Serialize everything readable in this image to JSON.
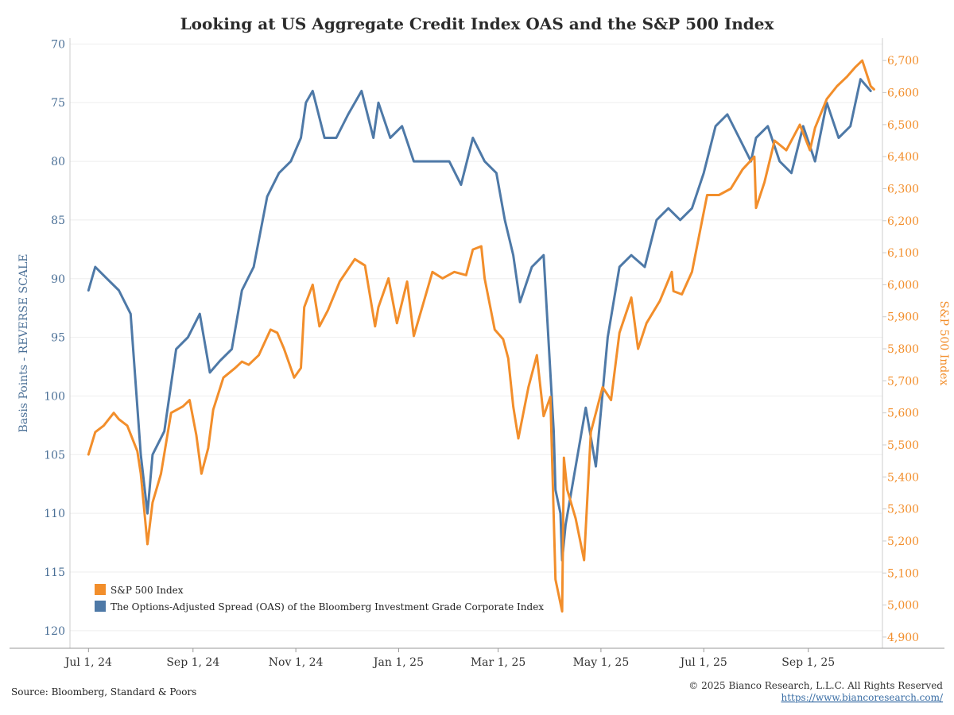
{
  "chart_data": {
    "type": "line",
    "title": "Looking at US Aggregate Credit Index OAS and the S&P 500 Index",
    "x_tick_labels": [
      "Jul 1, 24",
      "Sep 1, 24",
      "Nov 1, 24",
      "Jan 1, 25",
      "Mar 1, 25",
      "May 1, 25",
      "Jul 1, 25",
      "Sep 1, 25"
    ],
    "x_tick_dates": [
      "2024-07-01",
      "2024-09-01",
      "2024-11-01",
      "2025-01-01",
      "2025-03-01",
      "2025-05-01",
      "2025-07-01",
      "2025-09-01"
    ],
    "xlim": [
      "2024-06-20",
      "2025-10-15"
    ],
    "left_axis": {
      "label": "Basis Points - REVERSE SCALE",
      "ylim": [
        69.5,
        121.5
      ],
      "reversed": true,
      "ticks": [
        "70",
        "75",
        "80",
        "85",
        "90",
        "95",
        "100",
        "105",
        "110",
        "115",
        "120"
      ]
    },
    "right_axis": {
      "label": "S&P 500 Index",
      "ylim": [
        4865,
        6770
      ],
      "ticks": [
        "6,700",
        "6,600",
        "6,500",
        "6,400",
        "6,300",
        "6,200",
        "6,100",
        "6,000",
        "5,900",
        "5,800",
        "5,700",
        "5,600",
        "5,500",
        "5,400",
        "5,300",
        "5,200",
        "5,100",
        "5,000",
        "4,900"
      ]
    },
    "legend_position": "bottom-left",
    "grid": "horizontal",
    "series": [
      {
        "name": "S&P 500 Index",
        "axis": "right",
        "color": "#f28e2b",
        "x": [
          "2024-07-01",
          "2024-07-05",
          "2024-07-10",
          "2024-07-16",
          "2024-07-19",
          "2024-07-24",
          "2024-07-30",
          "2024-08-01",
          "2024-08-05",
          "2024-08-08",
          "2024-08-13",
          "2024-08-19",
          "2024-08-26",
          "2024-08-30",
          "2024-09-03",
          "2024-09-06",
          "2024-09-10",
          "2024-09-13",
          "2024-09-19",
          "2024-09-26",
          "2024-09-30",
          "2024-10-04",
          "2024-10-10",
          "2024-10-17",
          "2024-10-21",
          "2024-10-25",
          "2024-10-31",
          "2024-11-04",
          "2024-11-06",
          "2024-11-11",
          "2024-11-15",
          "2024-11-20",
          "2024-11-27",
          "2024-12-06",
          "2024-12-12",
          "2024-12-18",
          "2024-12-20",
          "2024-12-26",
          "2024-12-31",
          "2025-01-06",
          "2025-01-10",
          "2025-01-15",
          "2025-01-21",
          "2025-01-27",
          "2025-02-03",
          "2025-02-10",
          "2025-02-14",
          "2025-02-19",
          "2025-02-21",
          "2025-02-27",
          "2025-03-04",
          "2025-03-07",
          "2025-03-10",
          "2025-03-13",
          "2025-03-19",
          "2025-03-24",
          "2025-03-28",
          "2025-04-01",
          "2025-04-04",
          "2025-04-08",
          "2025-04-09",
          "2025-04-11",
          "2025-04-16",
          "2025-04-21",
          "2025-04-25",
          "2025-05-02",
          "2025-05-07",
          "2025-05-12",
          "2025-05-19",
          "2025-05-23",
          "2025-05-28",
          "2025-06-05",
          "2025-06-12",
          "2025-06-13",
          "2025-06-18",
          "2025-06-24",
          "2025-06-30",
          "2025-07-03",
          "2025-07-10",
          "2025-07-17",
          "2025-07-24",
          "2025-07-31",
          "2025-08-01",
          "2025-08-06",
          "2025-08-12",
          "2025-08-19",
          "2025-08-27",
          "2025-09-02",
          "2025-09-05",
          "2025-09-12",
          "2025-09-18",
          "2025-09-24",
          "2025-09-29",
          "2025-10-03",
          "2025-10-08",
          "2025-10-10"
        ],
        "values": [
          5470,
          5540,
          5560,
          5600,
          5580,
          5560,
          5480,
          5410,
          5190,
          5320,
          5410,
          5600,
          5620,
          5640,
          5530,
          5410,
          5490,
          5610,
          5710,
          5740,
          5760,
          5750,
          5780,
          5860,
          5850,
          5800,
          5710,
          5740,
          5930,
          6000,
          5870,
          5920,
          6010,
          6080,
          6060,
          5870,
          5930,
          6020,
          5880,
          6010,
          5840,
          5930,
          6040,
          6020,
          6040,
          6030,
          6110,
          6120,
          6020,
          5860,
          5830,
          5770,
          5620,
          5520,
          5680,
          5780,
          5590,
          5650,
          5080,
          4980,
          5460,
          5360,
          5270,
          5140,
          5540,
          5680,
          5640,
          5850,
          5960,
          5800,
          5880,
          5950,
          6040,
          5980,
          5970,
          6040,
          6200,
          6280,
          6280,
          6300,
          6360,
          6400,
          6240,
          6320,
          6450,
          6420,
          6500,
          6420,
          6490,
          6580,
          6620,
          6650,
          6680,
          6700,
          6620,
          6610
        ]
      },
      {
        "name": "The Options-Adjusted Spread (OAS) of the Bloomberg Investment Grade Corporate Index",
        "axis": "left",
        "color": "#4e79a7",
        "x": [
          "2024-07-01",
          "2024-07-05",
          "2024-07-12",
          "2024-07-19",
          "2024-07-26",
          "2024-08-01",
          "2024-08-05",
          "2024-08-08",
          "2024-08-15",
          "2024-08-22",
          "2024-08-29",
          "2024-09-05",
          "2024-09-11",
          "2024-09-17",
          "2024-09-24",
          "2024-09-30",
          "2024-10-07",
          "2024-10-15",
          "2024-10-22",
          "2024-10-29",
          "2024-11-04",
          "2024-11-07",
          "2024-11-11",
          "2024-11-18",
          "2024-11-25",
          "2024-12-02",
          "2024-12-10",
          "2024-12-17",
          "2024-12-20",
          "2024-12-27",
          "2025-01-03",
          "2025-01-10",
          "2025-01-17",
          "2025-01-24",
          "2025-01-31",
          "2025-02-07",
          "2025-02-14",
          "2025-02-21",
          "2025-02-28",
          "2025-03-05",
          "2025-03-10",
          "2025-03-14",
          "2025-03-21",
          "2025-03-28",
          "2025-04-03",
          "2025-04-04",
          "2025-04-07",
          "2025-04-08",
          "2025-04-10",
          "2025-04-16",
          "2025-04-22",
          "2025-04-28",
          "2025-05-05",
          "2025-05-12",
          "2025-05-19",
          "2025-05-27",
          "2025-06-03",
          "2025-06-10",
          "2025-06-17",
          "2025-06-24",
          "2025-07-01",
          "2025-07-08",
          "2025-07-15",
          "2025-07-22",
          "2025-07-29",
          "2025-08-01",
          "2025-08-08",
          "2025-08-15",
          "2025-08-22",
          "2025-08-29",
          "2025-09-05",
          "2025-09-12",
          "2025-09-19",
          "2025-09-26",
          "2025-10-02",
          "2025-10-08"
        ],
        "values": [
          91,
          89,
          90,
          91,
          93,
          105,
          110,
          105,
          103,
          96,
          95,
          93,
          98,
          97,
          96,
          91,
          89,
          83,
          81,
          80,
          78,
          75,
          74,
          78,
          78,
          76,
          74,
          78,
          75,
          78,
          77,
          80,
          80,
          80,
          80,
          82,
          78,
          80,
          81,
          85,
          88,
          92,
          89,
          88,
          103,
          108,
          110,
          114,
          111,
          106,
          101,
          106,
          95,
          89,
          88,
          89,
          85,
          84,
          85,
          84,
          81,
          77,
          76,
          78,
          80,
          78,
          77,
          80,
          81,
          77,
          80,
          75,
          78,
          77,
          73,
          74
        ]
      }
    ]
  },
  "legend": {
    "items": [
      {
        "label": "S&P 500 Index",
        "color": "#f28e2b"
      },
      {
        "label": "The Options-Adjusted Spread (OAS) of the Bloomberg Investment Grade Corporate Index",
        "color": "#4e79a7"
      }
    ]
  },
  "footer": {
    "source": "Source: Bloomberg, Standard & Poors",
    "copyright": "© 2025 Bianco Research, L.L.C. All Rights Reserved",
    "url": "https://www.biancoresearch.com/"
  }
}
